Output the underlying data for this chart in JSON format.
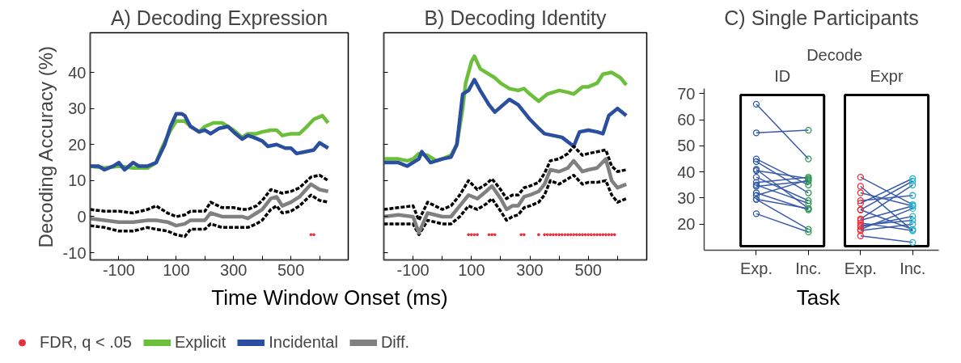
{
  "chart_data": [
    {
      "type": "line",
      "title": "A) Decoding Expression",
      "xlabel": "Time Window Onset (ms)",
      "ylabel": "Decoding Accuracy (%)",
      "xlim": [
        -200,
        700
      ],
      "ylim": [
        -12,
        51
      ],
      "xticks": [
        {
          "value": -100,
          "label": "-100"
        },
        {
          "value": 0,
          "label": null
        },
        {
          "value": 100,
          "label": "100"
        },
        {
          "value": 200,
          "label": null
        },
        {
          "value": 300,
          "label": "300"
        },
        {
          "value": 400,
          "label": null
        },
        {
          "value": 500,
          "label": "500"
        },
        {
          "value": 600,
          "label": null
        }
      ],
      "yticks": [
        -10,
        0,
        10,
        20,
        30,
        40
      ],
      "legend": "bottom",
      "line_style": "solid",
      "series": [
        {
          "name": "FDR, q < .05",
          "type": "scatter",
          "marker": "circle",
          "color": "#e8303a",
          "x": [
            570,
            580
          ],
          "values": [
            -5,
            -5
          ]
        },
        {
          "name": "Explicit",
          "color": "#6cbf3a",
          "x": [
            -200,
            -150,
            -100,
            -50,
            0,
            30,
            50,
            80,
            100,
            130,
            150,
            180,
            200,
            230,
            260,
            300,
            330,
            350,
            380,
            400,
            430,
            450,
            470,
            500,
            530,
            550,
            580,
            610,
            630
          ],
          "values": [
            14,
            13.5,
            14,
            13.5,
            13.5,
            15,
            19,
            24,
            26.5,
            26.5,
            25,
            23.5,
            25,
            26,
            26,
            24,
            22,
            23,
            23,
            23.5,
            24,
            24,
            22.5,
            23,
            23,
            24.5,
            27,
            28,
            26
          ]
        },
        {
          "name": "Incidental",
          "color": "#2a4fa0",
          "x": [
            -200,
            -170,
            -150,
            -120,
            -100,
            -80,
            -50,
            -30,
            0,
            30,
            60,
            80,
            100,
            120,
            130,
            150,
            180,
            200,
            220,
            250,
            280,
            300,
            330,
            350,
            370,
            400,
            420,
            450,
            480,
            500,
            520,
            550,
            580,
            600,
            630
          ],
          "values": [
            14,
            14,
            13,
            14,
            15,
            13,
            15,
            14,
            14,
            15,
            20,
            25,
            28.5,
            28.5,
            28,
            25,
            23.5,
            24,
            23,
            24.5,
            25,
            23.5,
            21.5,
            22.5,
            22,
            21,
            19.5,
            20,
            19,
            19,
            17.5,
            18,
            18.5,
            20.5,
            19
          ]
        },
        {
          "color": "#000000",
          "line_style": "dashed",
          "x": [
            -200,
            -150,
            -100,
            -50,
            0,
            30,
            70,
            100,
            130,
            150,
            200,
            220,
            260,
            300,
            330,
            350,
            380,
            400,
            430,
            450,
            470,
            500,
            530,
            570,
            600,
            630
          ],
          "values": [
            2,
            1.5,
            1.5,
            1,
            2,
            3,
            1,
            0,
            0.5,
            1.5,
            1.5,
            4,
            2.5,
            2.5,
            2,
            2,
            3,
            4.5,
            7.5,
            7,
            6.5,
            7,
            8,
            11,
            11.5,
            10
          ]
        },
        {
          "color": "#000000",
          "line_style": "dashed",
          "x": [
            -200,
            -150,
            -100,
            -50,
            0,
            30,
            70,
            100,
            130,
            150,
            200,
            220,
            260,
            300,
            330,
            350,
            380,
            400,
            430,
            450,
            470,
            500,
            530,
            570,
            600,
            630
          ],
          "values": [
            -2.5,
            -3,
            -4,
            -4,
            -3,
            -3.5,
            -4,
            -5,
            -5.5,
            -3.5,
            -3.5,
            -2,
            -3,
            -3,
            -3,
            -3,
            -2,
            -1,
            2,
            3,
            1,
            1.5,
            3,
            6,
            4.5,
            4
          ]
        },
        {
          "name": "Diff.",
          "color": "#808080",
          "x": [
            -200,
            -150,
            -100,
            -50,
            0,
            30,
            70,
            100,
            130,
            150,
            200,
            220,
            260,
            300,
            330,
            350,
            380,
            400,
            430,
            450,
            470,
            500,
            530,
            570,
            600,
            630
          ],
          "values": [
            -0.5,
            -1,
            -1.5,
            -1.5,
            -1,
            -1,
            -1.5,
            -2.5,
            -2,
            -1,
            -1,
            1,
            0,
            0,
            0,
            -0.5,
            1,
            2,
            5,
            5.5,
            3,
            4,
            5.5,
            9,
            7.5,
            7
          ]
        }
      ]
    },
    {
      "type": "line",
      "title": "B) Decoding Identity",
      "xlim": [
        -200,
        700
      ],
      "ylim": [
        -12,
        51
      ],
      "tick_labels": "x",
      "xticks": [
        {
          "value": -100,
          "label": "-100"
        },
        {
          "value": 0,
          "label": null
        },
        {
          "value": 100,
          "label": "100"
        },
        {
          "value": 200,
          "label": null
        },
        {
          "value": 300,
          "label": "300"
        },
        {
          "value": 400,
          "label": null
        },
        {
          "value": 500,
          "label": "500"
        },
        {
          "value": 600,
          "label": null
        }
      ],
      "yticks": [
        {
          "value": -10,
          "label": null
        },
        {
          "value": 0,
          "label": null
        },
        {
          "value": 10,
          "label": null
        },
        {
          "value": 20,
          "label": null
        },
        {
          "value": 30,
          "label": null
        },
        {
          "value": 40,
          "label": null
        }
      ],
      "line_style": "solid",
      "series": [
        {
          "type": "scatter",
          "marker": "circle",
          "color": "#e8303a",
          "x": [
            90,
            100,
            110,
            120,
            160,
            170,
            180,
            270,
            280,
            330,
            350,
            360,
            370,
            380,
            390,
            400,
            410,
            420,
            430,
            440,
            450,
            460,
            470,
            480,
            490,
            500,
            510,
            520,
            530,
            540,
            550,
            560,
            570,
            580,
            590
          ],
          "values": [
            -5,
            -5,
            -5,
            -5,
            -5,
            -5,
            -5,
            -5,
            -5,
            -5,
            -5,
            -5,
            -5,
            -5,
            -5,
            -5,
            -5,
            -5,
            -5,
            -5,
            -5,
            -5,
            -5,
            -5,
            -5,
            -5,
            -5,
            -5,
            -5,
            -5,
            -5,
            -5,
            -5,
            -5,
            -5
          ]
        },
        {
          "color": "#6cbf3a",
          "x": [
            -200,
            -150,
            -120,
            -100,
            -80,
            -50,
            -20,
            0,
            30,
            50,
            70,
            80,
            100,
            110,
            130,
            150,
            180,
            200,
            230,
            260,
            280,
            300,
            330,
            360,
            400,
            430,
            450,
            480,
            500,
            530,
            550,
            580,
            610,
            630
          ],
          "values": [
            16,
            16,
            15.5,
            16,
            17.5,
            17,
            15.5,
            16,
            17,
            20,
            30,
            37,
            43,
            44.5,
            41,
            40,
            38.5,
            37,
            35.5,
            35,
            35.5,
            34,
            32,
            34,
            35,
            34.5,
            34,
            36,
            36,
            37,
            39.5,
            40,
            38.5,
            36.5
          ]
        },
        {
          "color": "#2a4fa0",
          "x": [
            -200,
            -150,
            -120,
            -80,
            -70,
            -40,
            0,
            30,
            50,
            70,
            90,
            110,
            130,
            160,
            180,
            230,
            260,
            300,
            330,
            350,
            380,
            410,
            450,
            470,
            500,
            530,
            550,
            570,
            600,
            630
          ],
          "values": [
            15,
            15,
            14,
            16,
            18,
            15,
            16,
            16.5,
            20,
            34,
            35,
            38,
            35,
            31,
            29,
            32.5,
            31,
            27,
            24.5,
            23,
            22.5,
            22,
            19.5,
            23.5,
            24,
            23.5,
            23,
            28,
            30,
            28
          ]
        },
        {
          "color": "#000000",
          "line_style": "dashed",
          "x": [
            -200,
            -150,
            -100,
            -80,
            -50,
            0,
            30,
            60,
            90,
            120,
            150,
            170,
            200,
            220,
            240,
            260,
            280,
            300,
            330,
            350,
            370,
            400,
            430,
            450,
            480,
            500,
            530,
            560,
            580,
            600,
            630
          ],
          "values": [
            2,
            2.5,
            3,
            -1,
            4,
            2,
            3,
            6,
            10,
            7.5,
            9,
            10.5,
            7.5,
            5,
            6,
            6,
            8,
            8.5,
            9.5,
            12,
            15.5,
            16,
            17.5,
            19.5,
            17,
            17.5,
            18,
            18.5,
            14,
            12.5,
            13
          ]
        },
        {
          "color": "#000000",
          "line_style": "dashed",
          "x": [
            -200,
            -150,
            -100,
            -80,
            -50,
            0,
            30,
            60,
            90,
            120,
            150,
            170,
            200,
            220,
            240,
            260,
            280,
            300,
            330,
            350,
            370,
            400,
            430,
            450,
            480,
            500,
            530,
            560,
            580,
            600,
            630
          ],
          "values": [
            -2,
            -2,
            -2,
            -5,
            -1,
            -2,
            -2,
            0,
            3,
            2,
            3.5,
            5,
            1.5,
            -1,
            0,
            0.5,
            2.5,
            3,
            4,
            6,
            10,
            9,
            10.5,
            11.5,
            9,
            9.5,
            9.5,
            10,
            6,
            4,
            5
          ]
        },
        {
          "color": "#808080",
          "x": [
            -200,
            -150,
            -100,
            -80,
            -50,
            0,
            30,
            60,
            90,
            120,
            150,
            170,
            200,
            220,
            240,
            260,
            280,
            300,
            330,
            350,
            370,
            400,
            430,
            450,
            480,
            500,
            530,
            560,
            580,
            600,
            630
          ],
          "values": [
            0,
            0.5,
            0,
            -4.5,
            1,
            0,
            0,
            3,
            6,
            5,
            7,
            8.5,
            5,
            2,
            3,
            3,
            5.5,
            6,
            7,
            9,
            13,
            12.5,
            13.5,
            15.5,
            12.5,
            13,
            13.5,
            16,
            10,
            8,
            9
          ]
        }
      ]
    },
    {
      "type": "line",
      "title": "C) Single Participants",
      "xlabel": "Task",
      "annotations": [
        "Decode",
        "ID",
        "Expr"
      ],
      "categories": [
        "Exp.",
        "Inc.",
        "Exp.",
        "Inc."
      ],
      "colors": [
        "#2a55a8",
        "#2e9a4e",
        "#e8303a",
        "#22b5c8"
      ],
      "ylim": [
        10,
        72
      ],
      "yticks": [
        20,
        30,
        40,
        50,
        60,
        70
      ],
      "marker": "circle",
      "line_style": "solid",
      "series": [
        {
          "color": "#3a5bab",
          "values": [
            66,
            45,
            null,
            null
          ]
        },
        {
          "color": "#3a5bab",
          "values": [
            55,
            56,
            null,
            null
          ]
        },
        {
          "color": "#3a5bab",
          "values": [
            45,
            35,
            null,
            null
          ]
        },
        {
          "color": "#3a5bab",
          "values": [
            44,
            32,
            null,
            null
          ]
        },
        {
          "color": "#3a5bab",
          "values": [
            41,
            26,
            null,
            null
          ]
        },
        {
          "color": "#3a5bab",
          "values": [
            40.5,
            37.5,
            null,
            null
          ]
        },
        {
          "color": "#3a5bab",
          "values": [
            38,
            29,
            null,
            null
          ]
        },
        {
          "color": "#3a5bab",
          "values": [
            36,
            38,
            null,
            null
          ]
        },
        {
          "color": "#3a5bab",
          "values": [
            35,
            28,
            null,
            null
          ]
        },
        {
          "color": "#3a5bab",
          "values": [
            34.5,
            36.5,
            null,
            null
          ]
        },
        {
          "color": "#3a5bab",
          "values": [
            32,
            25.5,
            null,
            null
          ]
        },
        {
          "color": "#3a5bab",
          "values": [
            31,
            37,
            null,
            null
          ]
        },
        {
          "color": "#3a5bab",
          "values": [
            29.5,
            26,
            null,
            null
          ]
        },
        {
          "color": "#3a5bab",
          "values": [
            29.5,
            18,
            null,
            null
          ]
        },
        {
          "color": "#3a5bab",
          "values": [
            24,
            17,
            null,
            null
          ]
        },
        {
          "color": "#3a5bab",
          "values": [
            null,
            null,
            38,
            27.5
          ]
        },
        {
          "color": "#3a5bab",
          "values": [
            null,
            null,
            34.5,
            17.5
          ]
        },
        {
          "color": "#3a5bab",
          "values": [
            null,
            null,
            32,
            27
          ]
        },
        {
          "color": "#3a5bab",
          "values": [
            null,
            null,
            29,
            31
          ]
        },
        {
          "color": "#3a5bab",
          "values": [
            null,
            null,
            28,
            37.5
          ]
        },
        {
          "color": "#3a5bab",
          "values": [
            null,
            null,
            25.5,
            36.5
          ]
        },
        {
          "color": "#3a5bab",
          "values": [
            null,
            null,
            25.5,
            18
          ]
        },
        {
          "color": "#3a5bab",
          "values": [
            null,
            null,
            22,
            35
          ]
        },
        {
          "color": "#3a5bab",
          "values": [
            null,
            null,
            21.5,
            27
          ]
        },
        {
          "color": "#3a5bab",
          "values": [
            null,
            null,
            20.5,
            17.5
          ]
        },
        {
          "color": "#3a5bab",
          "values": [
            null,
            null,
            19.5,
            21.5
          ]
        },
        {
          "color": "#3a5bab",
          "values": [
            null,
            null,
            19,
            23
          ]
        },
        {
          "color": "#3a5bab",
          "values": [
            null,
            null,
            18,
            26
          ]
        },
        {
          "color": "#3a5bab",
          "values": [
            null,
            null,
            17.5,
            20
          ]
        },
        {
          "color": "#3a5bab",
          "values": [
            null,
            null,
            15.5,
            13
          ]
        }
      ]
    }
  ]
}
